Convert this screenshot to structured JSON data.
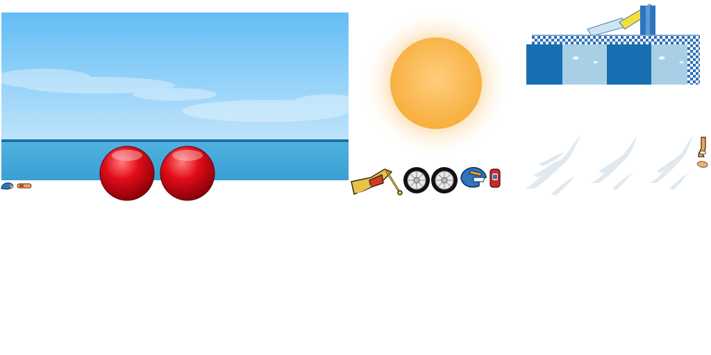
{
  "sprite_sheet": {
    "background_color": "#ffffff",
    "sprites": [
      {
        "name": "sky-ocean-background",
        "colors": {
          "sky_top": "#63bdf6",
          "sky_bottom": "#bfe4fb",
          "sea": "#3a9fd2",
          "horizon": "#1f6f9e"
        }
      },
      {
        "name": "red-buoy-ball",
        "count": 2,
        "color": "#e10c1a"
      },
      {
        "name": "sun",
        "color": "#f7ae3c"
      },
      {
        "name": "checkered-ramp-platform",
        "colors": {
          "check": "#2e71b8",
          "panel_dark": "#176fb2",
          "panel_light": "#a9cfe6"
        }
      },
      {
        "name": "motorbike-frame",
        "color": "#e6c24a"
      },
      {
        "name": "bike-wheel",
        "count": 2
      },
      {
        "name": "rider-helmet",
        "color": "#2e74bf"
      },
      {
        "name": "rider-torso",
        "color": "#cc2a2a"
      },
      {
        "name": "water-splash-effect",
        "count": 3
      },
      {
        "name": "rider-leg",
        "color": "#e8a75a"
      },
      {
        "name": "rider-foot"
      },
      {
        "name": "rider-hand",
        "color": "#2e74bf"
      },
      {
        "name": "rider-arm",
        "color": "#e8a75a"
      }
    ]
  }
}
